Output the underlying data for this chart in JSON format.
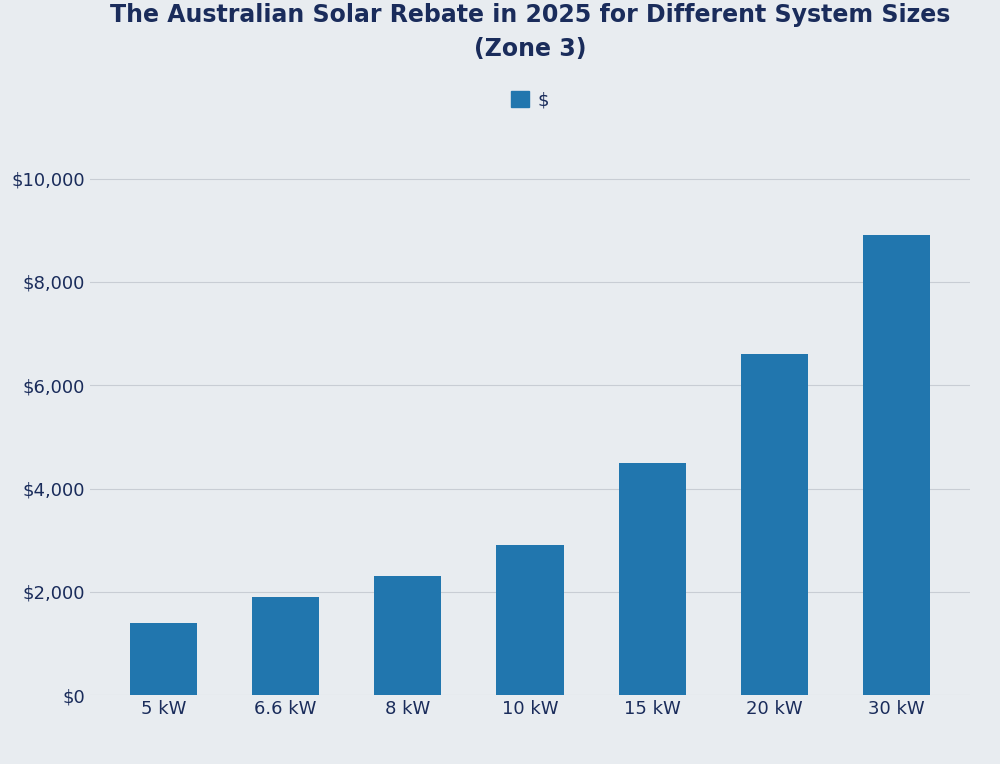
{
  "title_line1": "The Australian Solar Rebate in 2025 for Different System Sizes",
  "title_line2": "(Zone 3)",
  "categories": [
    "5 kW",
    "6.6 kW",
    "8 kW",
    "10 kW",
    "15 kW",
    "20 kW",
    "30 kW"
  ],
  "values": [
    1400,
    1900,
    2300,
    2900,
    4500,
    6600,
    8900
  ],
  "bar_color": "#2176AE",
  "background_color": "#E8ECF0",
  "grid_color": "#C8CDD4",
  "title_color": "#1a2c5b",
  "tick_color": "#1a2c5b",
  "legend_label": "$",
  "ylim": [
    0,
    10500
  ],
  "yticks": [
    0,
    2000,
    4000,
    6000,
    8000,
    10000
  ],
  "ytick_labels": [
    "$0",
    "$2,000",
    "$4,000",
    "$6,000",
    "$8,000",
    "$10,000"
  ],
  "title_fontsize": 17,
  "tick_fontsize": 13,
  "legend_fontsize": 13,
  "bar_width": 0.55
}
